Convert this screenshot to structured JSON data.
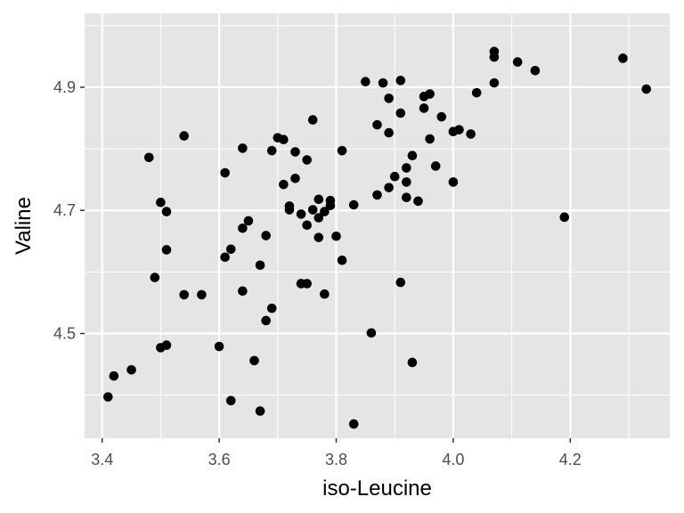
{
  "chart_data": {
    "type": "scatter",
    "title": "",
    "xlabel": "iso-Leucine",
    "ylabel": "Valine",
    "xlim": [
      3.37,
      4.37
    ],
    "ylim": [
      4.33,
      5.02
    ],
    "x_major_ticks": [
      3.4,
      3.6,
      3.8,
      4.0,
      4.2
    ],
    "x_tick_labels": [
      "3.4",
      "3.6",
      "3.8",
      "4.0",
      "4.2"
    ],
    "x_minor_ticks": [
      3.5,
      3.7,
      3.9,
      4.1,
      4.3
    ],
    "y_major_ticks": [
      4.5,
      4.7,
      4.9
    ],
    "y_tick_labels": [
      "4.5",
      "4.7",
      "4.9"
    ],
    "y_minor_ticks": [
      4.4,
      4.6,
      4.8,
      5.0
    ],
    "grid": true,
    "colors": {
      "panel_background": "#e5e5e5",
      "grid_line": "#ffffff",
      "point": "#000000",
      "tick_mark": "#333333",
      "tick_label": "#4d4d4d",
      "axis_title": "#000000"
    },
    "series": [
      {
        "name": "points",
        "points": [
          [
            3.41,
            4.397
          ],
          [
            3.42,
            4.431
          ],
          [
            3.45,
            4.441
          ],
          [
            3.48,
            4.786
          ],
          [
            3.49,
            4.591
          ],
          [
            3.5,
            4.713
          ],
          [
            3.51,
            4.698
          ],
          [
            3.51,
            4.636
          ],
          [
            3.5,
            4.477
          ],
          [
            3.51,
            4.481
          ],
          [
            3.54,
            4.563
          ],
          [
            3.57,
            4.563
          ],
          [
            3.54,
            4.821
          ],
          [
            3.6,
            4.479
          ],
          [
            3.61,
            4.624
          ],
          [
            3.61,
            4.761
          ],
          [
            3.62,
            4.637
          ],
          [
            3.62,
            4.391
          ],
          [
            3.64,
            4.671
          ],
          [
            3.64,
            4.569
          ],
          [
            3.64,
            4.801
          ],
          [
            3.65,
            4.683
          ],
          [
            3.66,
            4.456
          ],
          [
            3.67,
            4.611
          ],
          [
            3.67,
            4.374
          ],
          [
            3.68,
            4.521
          ],
          [
            3.68,
            4.659
          ],
          [
            3.69,
            4.797
          ],
          [
            3.69,
            4.541
          ],
          [
            3.7,
            4.818
          ],
          [
            3.71,
            4.742
          ],
          [
            3.71,
            4.815
          ],
          [
            3.72,
            4.701
          ],
          [
            3.72,
            4.707
          ],
          [
            3.73,
            4.795
          ],
          [
            3.73,
            4.752
          ],
          [
            3.74,
            4.581
          ],
          [
            3.74,
            4.694
          ],
          [
            3.75,
            4.676
          ],
          [
            3.75,
            4.782
          ],
          [
            3.75,
            4.581
          ],
          [
            3.76,
            4.847
          ],
          [
            3.76,
            4.701
          ],
          [
            3.77,
            4.688
          ],
          [
            3.77,
            4.718
          ],
          [
            3.77,
            4.656
          ],
          [
            3.78,
            4.564
          ],
          [
            3.78,
            4.698
          ],
          [
            3.79,
            4.716
          ],
          [
            3.79,
            4.708
          ],
          [
            3.8,
            4.658
          ],
          [
            3.81,
            4.797
          ],
          [
            3.81,
            4.619
          ],
          [
            3.83,
            4.709
          ],
          [
            3.83,
            4.353
          ],
          [
            3.85,
            4.909
          ],
          [
            3.86,
            4.501
          ],
          [
            3.87,
            4.839
          ],
          [
            3.87,
            4.725
          ],
          [
            3.88,
            4.907
          ],
          [
            3.89,
            4.882
          ],
          [
            3.89,
            4.826
          ],
          [
            3.89,
            4.737
          ],
          [
            3.9,
            4.755
          ],
          [
            3.91,
            4.911
          ],
          [
            3.91,
            4.858
          ],
          [
            3.91,
            4.583
          ],
          [
            3.92,
            4.769
          ],
          [
            3.92,
            4.746
          ],
          [
            3.92,
            4.721
          ],
          [
            3.93,
            4.453
          ],
          [
            3.93,
            4.789
          ],
          [
            3.94,
            4.715
          ],
          [
            3.95,
            4.866
          ],
          [
            3.95,
            4.885
          ],
          [
            3.96,
            4.889
          ],
          [
            3.96,
            4.816
          ],
          [
            3.97,
            4.772
          ],
          [
            3.98,
            4.852
          ],
          [
            4.0,
            4.746
          ],
          [
            4.0,
            4.828
          ],
          [
            4.01,
            4.831
          ],
          [
            4.03,
            4.824
          ],
          [
            4.04,
            4.891
          ],
          [
            4.07,
            4.958
          ],
          [
            4.07,
            4.907
          ],
          [
            4.07,
            4.949
          ],
          [
            4.11,
            4.941
          ],
          [
            4.14,
            4.927
          ],
          [
            4.19,
            4.689
          ],
          [
            4.29,
            4.947
          ],
          [
            4.33,
            4.897
          ]
        ]
      }
    ]
  }
}
